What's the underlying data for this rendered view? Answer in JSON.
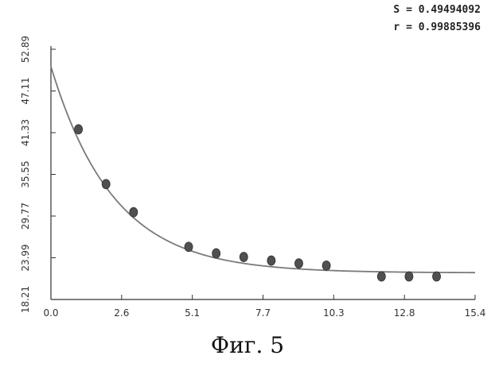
{
  "stats": {
    "s_line": "S = 0.49494092",
    "r_line": "r = 0.99885396"
  },
  "caption": "Фиг. 5",
  "colors": {
    "curve": "#7a7a7a",
    "point": "#505050",
    "axis": "#333333"
  },
  "chart_data": {
    "type": "scatter",
    "title": "",
    "xlabel": "",
    "ylabel": "",
    "xlim": [
      0.0,
      15.4
    ],
    "ylim": [
      18.21,
      52.89
    ],
    "x_ticks": [
      "0.0",
      "2.6",
      "5.1",
      "7.7",
      "10.3",
      "12.8",
      "15.4"
    ],
    "y_ticks": [
      "18.21",
      "23.99",
      "29.77",
      "35.55",
      "41.33",
      "47.11",
      "52.89"
    ],
    "grid": false,
    "legend": "none",
    "series": [
      {
        "kind": "points",
        "x": [
          1.0,
          2.0,
          3.0,
          5.0,
          6.0,
          7.0,
          8.0,
          9.0,
          10.0,
          12.0,
          13.0,
          14.0
        ],
        "y": [
          41.8,
          34.2,
          30.3,
          25.5,
          24.6,
          24.1,
          23.6,
          23.2,
          22.9,
          21.4,
          21.4,
          21.4
        ]
      },
      {
        "kind": "fit-curve",
        "model": "y = a + b*exp(-k*x)",
        "a": 21.9,
        "b": 28.6,
        "k": 0.44
      }
    ]
  }
}
